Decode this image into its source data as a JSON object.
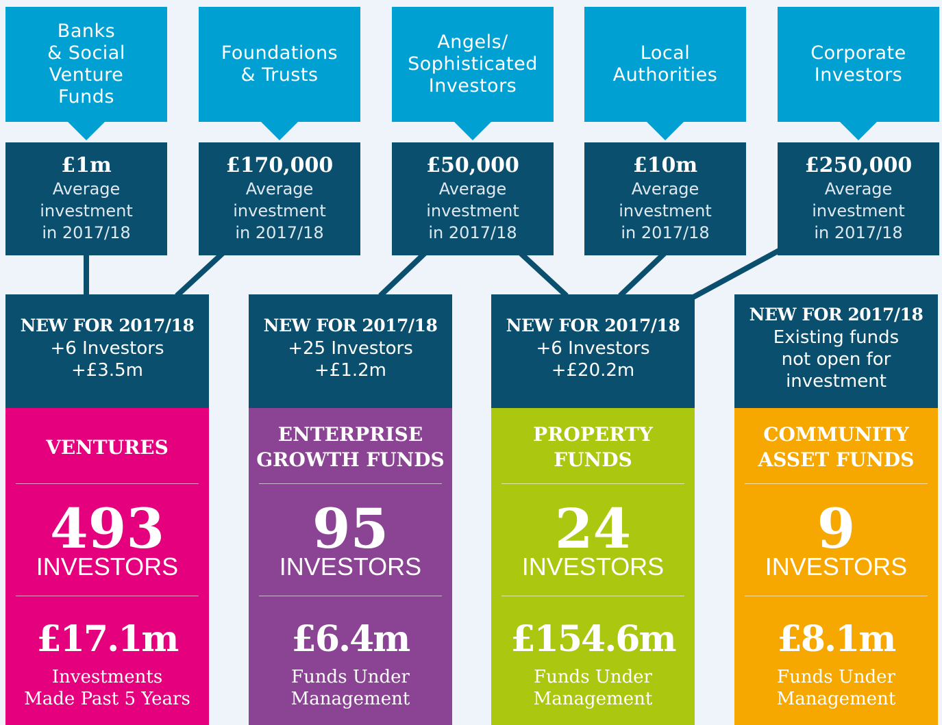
{
  "sources": [
    {
      "label": "Banks\n& Social\nVenture\nFunds",
      "amount": "£1m",
      "caption": "Average\ninvestment\nin 2017/18"
    },
    {
      "label": "Foundations\n& Trusts",
      "amount": "£170,000",
      "caption": "Average\ninvestment\nin 2017/18"
    },
    {
      "label": "Angels/\nSophisticated\nInvestors",
      "amount": "£50,000",
      "caption": "Average\ninvestment\nin 2017/18"
    },
    {
      "label": "Local\nAuthorities",
      "amount": "£10m",
      "caption": "Average\ninvestment\nin 2017/18"
    },
    {
      "label": "Corporate\nInvestors",
      "amount": "£250,000",
      "caption": "Average\ninvestment\nin 2017/18"
    }
  ],
  "funds": [
    {
      "new_heading": "NEW FOR 2017/18",
      "new_text": "+6 Investors\n+£3.5m",
      "name": "VENTURES",
      "count": "493",
      "count_label": "INVESTORS",
      "amount": "£17.1m",
      "amount_label": "Investments\nMade Past 5 Years"
    },
    {
      "new_heading": "NEW FOR 2017/18",
      "new_text": "+25 Investors\n+£1.2m",
      "name": "ENTERPRISE\nGROWTH FUNDS",
      "count": "95",
      "count_label": "INVESTORS",
      "amount": "£6.4m",
      "amount_label": "Funds Under\nManagement"
    },
    {
      "new_heading": "NEW FOR 2017/18",
      "new_text": "+6 Investors\n+£20.2m",
      "name": "PROPERTY\nFUNDS",
      "count": "24",
      "count_label": "INVESTORS",
      "amount": "£154.6m",
      "amount_label": "Funds Under\nManagement"
    },
    {
      "new_heading": "NEW FOR 2017/18",
      "new_text": "Existing funds\nnot open for\ninvestment",
      "name": "COMMUNITY\nASSET FUNDS",
      "count": "9",
      "count_label": "INVESTORS",
      "amount": "£8.1m",
      "amount_label": "Funds Under\nManagement"
    }
  ]
}
